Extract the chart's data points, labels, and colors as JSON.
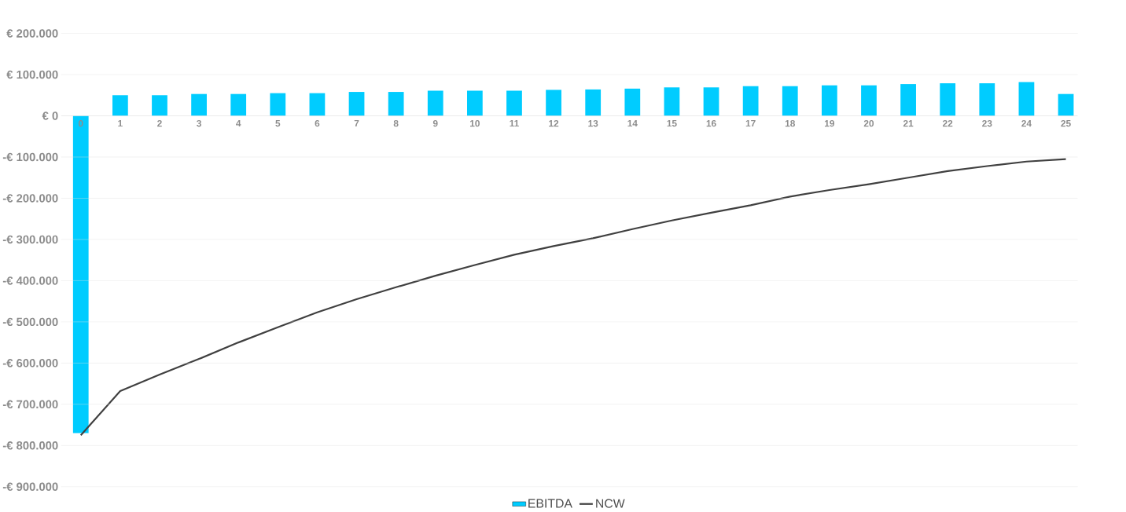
{
  "chart_data": {
    "type": "bar",
    "categories": [
      "0",
      "1",
      "2",
      "3",
      "4",
      "5",
      "6",
      "7",
      "8",
      "9",
      "10",
      "11",
      "12",
      "13",
      "14",
      "15",
      "16",
      "17",
      "18",
      "19",
      "20",
      "21",
      "22",
      "23",
      "24",
      "25"
    ],
    "series": [
      {
        "name": "EBITDA",
        "color": "#00ccff",
        "values": [
          -770000,
          50000,
          50000,
          53000,
          53000,
          55000,
          55000,
          58000,
          58000,
          61000,
          61000,
          61000,
          63000,
          64000,
          66000,
          69000,
          69000,
          72000,
          72000,
          74000,
          74000,
          77000,
          79000,
          79000,
          82000,
          53000
        ]
      },
      {
        "name": "NCW",
        "type": "line",
        "color": "#404040",
        "values": [
          -775000,
          -668000,
          -628000,
          -590000,
          -550000,
          -513000,
          -477000,
          -445000,
          -416000,
          -388000,
          -362000,
          -337000,
          -316000,
          -297000,
          -275000,
          -254000,
          -235000,
          -217000,
          -196000,
          -180000,
          -166000,
          -150000,
          -134000,
          -122000,
          -111000,
          -105000
        ]
      }
    ],
    "ylim": [
      -900000,
      200000
    ],
    "yticks": [
      {
        "value": 200000,
        "label": "€ 200.000"
      },
      {
        "value": 100000,
        "label": "€ 100.000"
      },
      {
        "value": 0,
        "label": "€ 0"
      },
      {
        "value": -100000,
        "label": "-€ 100.000"
      },
      {
        "value": -200000,
        "label": "-€ 200.000"
      },
      {
        "value": -300000,
        "label": "-€ 300.000"
      },
      {
        "value": -400000,
        "label": "-€ 400.000"
      },
      {
        "value": -500000,
        "label": "-€ 500.000"
      },
      {
        "value": -600000,
        "label": "-€ 600.000"
      },
      {
        "value": -700000,
        "label": "-€ 700.000"
      },
      {
        "value": -800000,
        "label": "-€ 800.000"
      },
      {
        "value": -900000,
        "label": "-€ 900.000"
      }
    ],
    "grid": "y",
    "legend": "bottom"
  }
}
